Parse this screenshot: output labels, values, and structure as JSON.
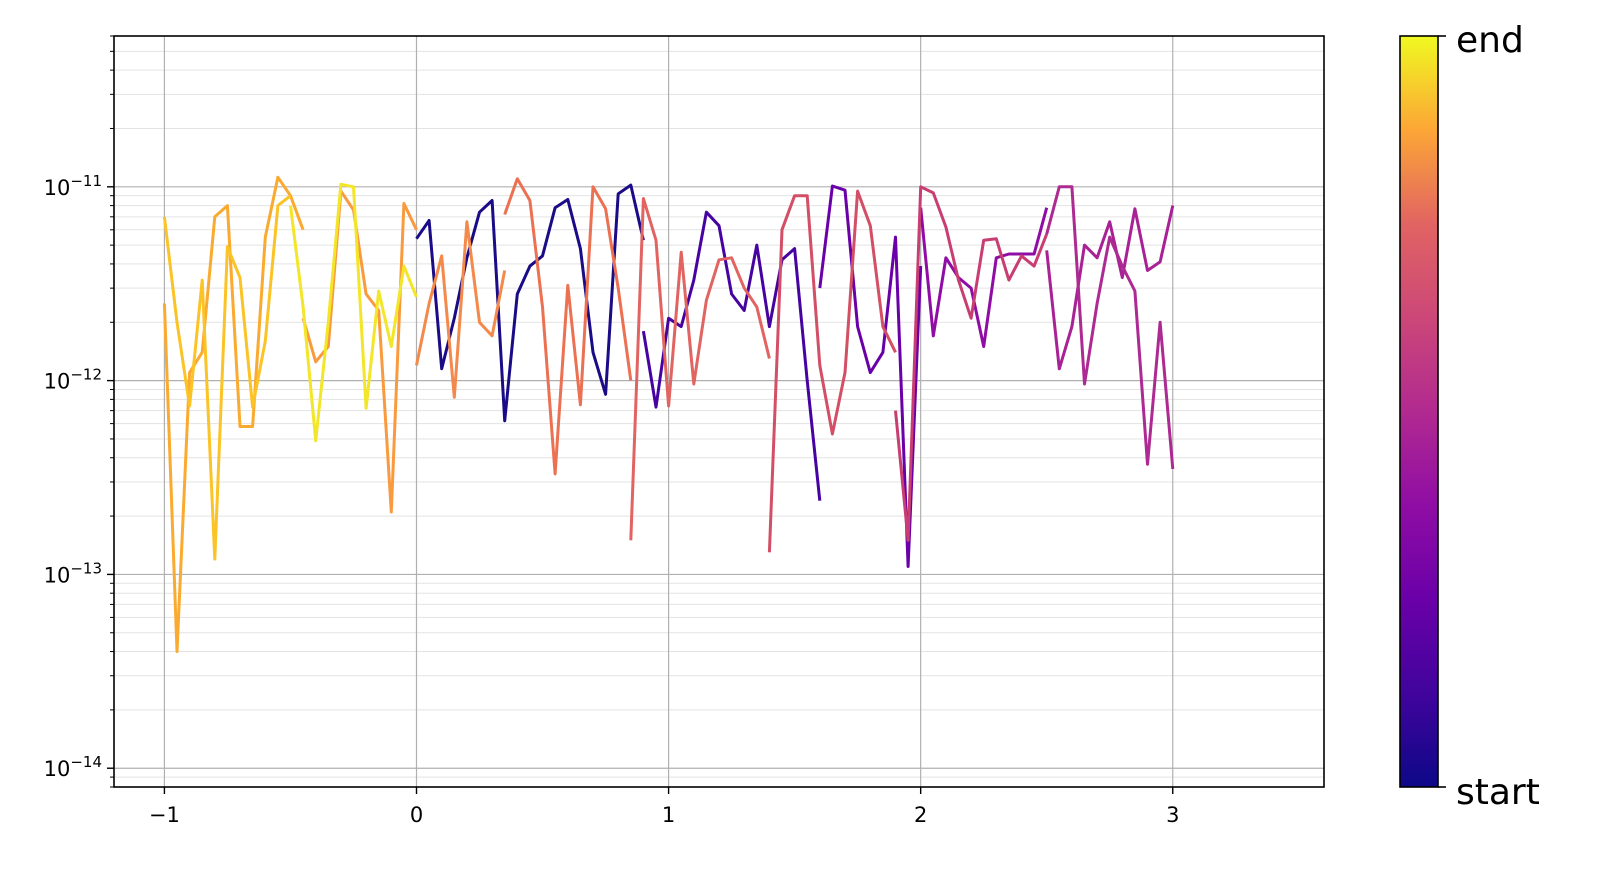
{
  "chart_data": {
    "type": "line",
    "title": "",
    "xlabel": "",
    "ylabel": "",
    "yscale": "log",
    "xlim": [
      -1.2,
      3.6
    ],
    "ylim": [
      8e-15,
      6e-11
    ],
    "grid": true,
    "colormap": "plasma",
    "x_ticks": [
      -1,
      0,
      1,
      2,
      3
    ],
    "x_tick_labels": [
      "−1",
      "0",
      "1",
      "2",
      "3"
    ],
    "y_ticks": [
      1e-14,
      1e-13,
      1e-12,
      1e-11
    ],
    "y_tick_labels": [
      {
        "base": "10",
        "exp": "−14"
      },
      {
        "base": "10",
        "exp": "−13"
      },
      {
        "base": "10",
        "exp": "−12"
      },
      {
        "base": "10",
        "exp": "−11"
      }
    ],
    "colorbar": {
      "start_label": "start",
      "end_label": "end"
    },
    "series": [
      {
        "color": "#1a0b86",
        "x": [
          0.0,
          0.05,
          0.1,
          0.15,
          0.2,
          0.25,
          0.3,
          0.35,
          0.4,
          0.45,
          0.5,
          0.55,
          0.6,
          0.65,
          0.7,
          0.75,
          0.8,
          0.85,
          0.9
        ],
        "y": [
          5.4e-12,
          6.7e-12,
          1.15e-12,
          2.1e-12,
          4.3e-12,
          7.4e-12,
          8.5e-12,
          6.2e-13,
          2.8e-12,
          3.9e-12,
          4.4e-12,
          7.8e-12,
          8.6e-12,
          4.8e-12,
          1.4e-12,
          8.5e-13,
          9.2e-12,
          1.02e-11,
          5.3e-12
        ]
      },
      {
        "color": "#4603a1",
        "x": [
          0.9,
          0.95,
          1.0,
          1.05,
          1.1,
          1.15,
          1.2,
          1.25,
          1.3,
          1.35,
          1.4,
          1.45,
          1.5,
          1.55,
          1.6
        ],
        "y": [
          1.8e-12,
          7.3e-13,
          2.1e-12,
          1.9e-12,
          3.3e-12,
          7.4e-12,
          6.3e-12,
          2.8e-12,
          2.3e-12,
          5e-12,
          1.9e-12,
          4.2e-12,
          4.8e-12,
          1e-12,
          2.4e-13
        ]
      },
      {
        "color": "#6a00a8",
        "x": [
          1.6,
          1.65,
          1.7,
          1.75,
          1.8,
          1.85,
          1.9,
          1.95,
          2.0
        ],
        "y": [
          3e-12,
          1.01e-11,
          9.6e-12,
          1.9e-12,
          1.1e-12,
          1.4e-12,
          5.5e-12,
          1.1e-13,
          3.9e-12
        ]
      },
      {
        "color": "#8f0da4",
        "x": [
          2.0,
          2.05,
          2.1,
          2.15,
          2.2,
          2.25,
          2.3,
          2.35,
          2.4,
          2.45,
          2.5
        ],
        "y": [
          7.8e-12,
          1.7e-12,
          4.3e-12,
          3.4e-12,
          3e-12,
          1.5e-12,
          4.3e-12,
          4.5e-12,
          4.5e-12,
          4.5e-12,
          7.8e-12
        ]
      },
      {
        "color": "#a82296",
        "x": [
          2.5,
          2.55,
          2.6,
          2.65,
          2.7,
          2.75,
          2.8,
          2.85,
          2.9,
          2.95,
          3.0
        ],
        "y": [
          4.7e-12,
          1.15e-12,
          1.9e-12,
          5e-12,
          4.3e-12,
          6.6e-12,
          3.4e-12,
          7.7e-12,
          3.7e-12,
          4.1e-12,
          8e-12
        ]
      },
      {
        "color": "#ad2a93",
        "x": [
          3.0,
          2.95,
          2.9,
          2.85,
          2.8,
          2.75,
          2.7,
          2.65,
          2.6,
          2.55,
          2.5
        ],
        "y": [
          3.5e-13,
          2e-12,
          3.7e-13,
          2.9e-12,
          3.9e-12,
          5.5e-12,
          2.5e-12,
          9.6e-13,
          1e-11,
          1e-11,
          5.7e-12
        ]
      },
      {
        "color": "#c83e73",
        "x": [
          2.5,
          2.45,
          2.4,
          2.35,
          2.3,
          2.25,
          2.2,
          2.15,
          2.1,
          2.05,
          2.0,
          1.95,
          1.9
        ],
        "y": [
          5.7e-12,
          3.9e-12,
          4.4e-12,
          3.3e-12,
          5.4e-12,
          5.3e-12,
          2.1e-12,
          3.3e-12,
          6.2e-12,
          9.3e-12,
          1e-11,
          1.5e-13,
          7e-13
        ]
      },
      {
        "color": "#d24f65",
        "x": [
          1.9,
          1.85,
          1.8,
          1.75,
          1.7,
          1.65,
          1.6,
          1.55,
          1.5,
          1.45,
          1.4
        ],
        "y": [
          1.4e-12,
          1.9e-12,
          6.3e-12,
          9.5e-12,
          1.1e-12,
          5.3e-13,
          1.2e-12,
          9e-12,
          9e-12,
          6e-12,
          1.3e-13
        ]
      },
      {
        "color": "#e16462",
        "x": [
          1.4,
          1.35,
          1.3,
          1.25,
          1.2,
          1.15,
          1.1,
          1.05,
          1.0,
          0.95,
          0.9,
          0.85
        ],
        "y": [
          1.3e-12,
          2.4e-12,
          3e-12,
          4.3e-12,
          4.2e-12,
          2.6e-12,
          9.6e-13,
          4.6e-12,
          7.4e-13,
          5.3e-12,
          8.7e-12,
          1.5e-13
        ]
      },
      {
        "color": "#ec7152",
        "x": [
          0.85,
          0.8,
          0.75,
          0.7,
          0.65,
          0.6,
          0.55,
          0.5,
          0.45,
          0.4,
          0.35
        ],
        "y": [
          1e-12,
          3e-12,
          7.7e-12,
          1e-11,
          7.5e-13,
          3.1e-12,
          3.3e-13,
          2.4e-12,
          8.5e-12,
          1.1e-11,
          7.2e-12
        ]
      },
      {
        "color": "#f3894b",
        "x": [
          0.35,
          0.3,
          0.25,
          0.2,
          0.15,
          0.1,
          0.05,
          0.0
        ],
        "y": [
          3.7e-12,
          1.7e-12,
          2e-12,
          6.6e-12,
          8.2e-13,
          4.4e-12,
          2.5e-12,
          1.2e-12
        ]
      },
      {
        "color": "#f99a3e",
        "x": [
          0.0,
          -0.05,
          -0.1,
          -0.15,
          -0.2,
          -0.25,
          -0.3,
          -0.35,
          -0.4,
          -0.45
        ],
        "y": [
          6e-12,
          8.2e-12,
          2.1e-13,
          2.3e-12,
          2.8e-12,
          7.6e-12,
          9.5e-12,
          1.5e-12,
          1.25e-12,
          2.1e-12
        ]
      },
      {
        "color": "#fbaa30",
        "x": [
          -0.45,
          -0.5,
          -0.55,
          -0.6,
          -0.65,
          -0.7,
          -0.75,
          -0.8,
          -0.85,
          -0.9,
          -0.95,
          -1.0
        ],
        "y": [
          6e-12,
          9e-12,
          1.12e-11,
          5.5e-12,
          5.8e-13,
          5.8e-13,
          8e-12,
          7e-12,
          1.4e-12,
          1.1e-12,
          4e-14,
          2.5e-12
        ]
      },
      {
        "color": "#fbc326",
        "x": [
          -1.0,
          -0.95,
          -0.9,
          -0.85,
          -0.8,
          -0.75,
          -0.7,
          -0.65,
          -0.6,
          -0.55,
          -0.5
        ],
        "y": [
          7e-12,
          2e-12,
          7.4e-13,
          3.3e-12,
          1.2e-13,
          4.9e-12,
          3.4e-12,
          7.3e-13,
          1.6e-12,
          8e-12,
          9e-12
        ]
      },
      {
        "color": "#f3e528",
        "x": [
          -0.5,
          -0.45,
          -0.4,
          -0.35,
          -0.3,
          -0.25,
          -0.2,
          -0.15,
          -0.1,
          -0.05,
          0.0
        ],
        "y": [
          8e-12,
          2.4e-12,
          4.9e-13,
          2e-12,
          1.03e-11,
          1e-11,
          7.2e-13,
          2.9e-12,
          1.5e-12,
          3.9e-12,
          2.7e-12
        ]
      }
    ]
  }
}
